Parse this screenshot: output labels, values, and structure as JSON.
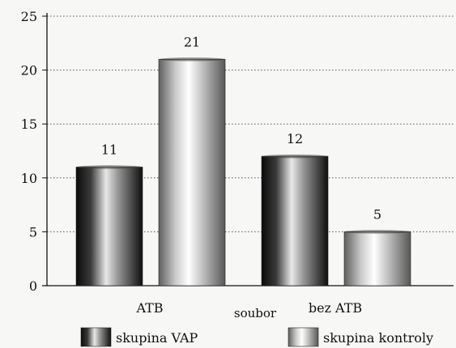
{
  "chart_data": {
    "type": "bar",
    "categories": [
      "ATB",
      "bez ATB"
    ],
    "series": [
      {
        "name": "skupina VAP",
        "values": [
          11,
          12
        ],
        "gradient": "dark"
      },
      {
        "name": "skupina kontroly",
        "values": [
          21,
          5
        ],
        "gradient": "light"
      }
    ],
    "title": "",
    "xlabel": "soubor",
    "ylabel": "",
    "ylim": [
      0,
      25
    ],
    "yticks": [
      0,
      5,
      10,
      15,
      20,
      25
    ],
    "grid": true,
    "legend": "bottom",
    "data_labels": true
  },
  "colors": {
    "background": "#f7f7f5",
    "axis": "#111111",
    "grid": "#555555",
    "dark_edge": "#0b0b0b",
    "dark_mid": "#e6e6e6",
    "light_edge": "#5a5a5a",
    "light_mid": "#ffffff"
  }
}
